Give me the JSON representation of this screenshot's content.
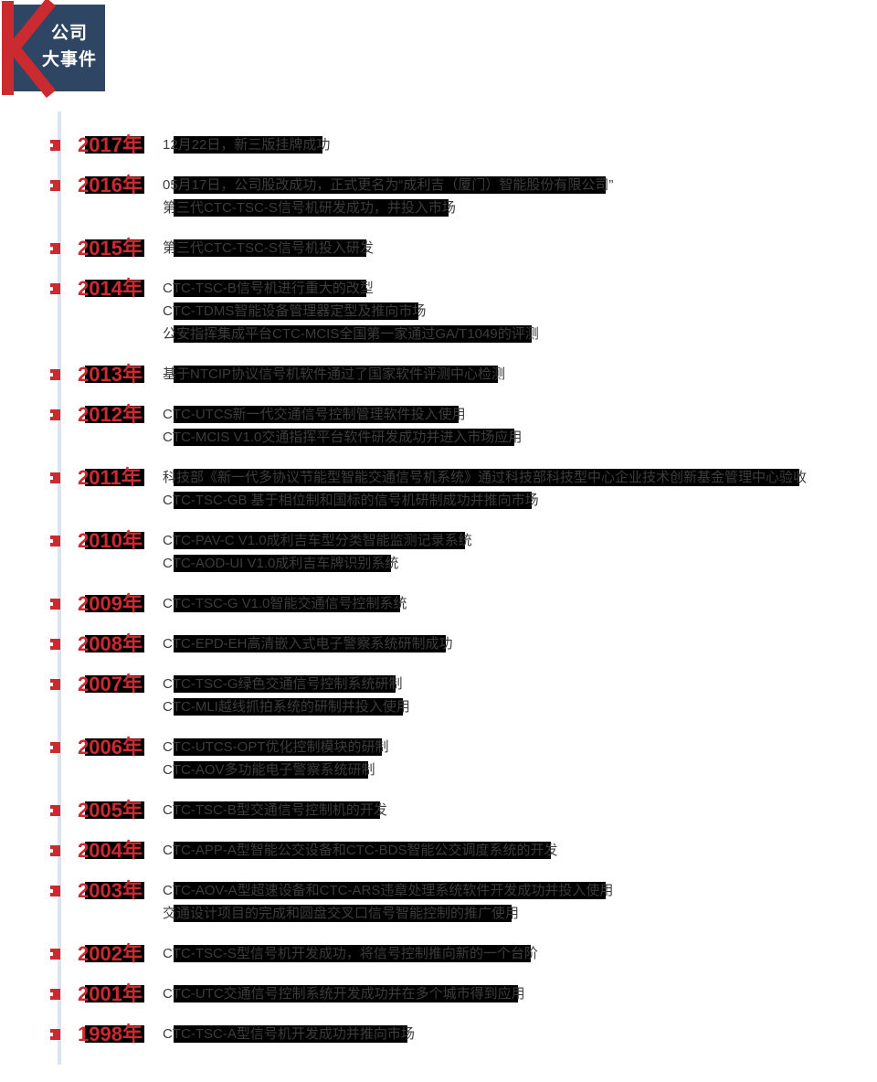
{
  "colors": {
    "accent_red": "#cb2a30",
    "navy": "#2e4563",
    "timeline_line": "#dce3f2",
    "highlight": "#000000",
    "body_text": "#3c3c3c"
  },
  "header": {
    "icon": "k-mark-icon",
    "line1": "公司",
    "line2": "大事件"
  },
  "timeline": {
    "entries": [
      {
        "year": "2017年",
        "events": [
          "12月22日，新三版挂牌成功"
        ]
      },
      {
        "year": "2016年",
        "events": [
          "05月17日，公司股改成功，正式更名为“成利吉（厦门）智能股份有限公司”",
          "第三代CTC-TSC-S信号机研发成功，并投入市场"
        ]
      },
      {
        "year": "2015年",
        "events": [
          "第三代CTC-TSC-S信号机投入研发"
        ]
      },
      {
        "year": "2014年",
        "events": [
          "CTC-TSC-B信号机进行重大的改型",
          "CTC-TDMS智能设备管理器定型及推向市场",
          "公安指挥集成平台CTC-MCIS全国第一家通过GA/T1049的评测"
        ]
      },
      {
        "year": "2013年",
        "events": [
          "基于NTCIP协议信号机软件通过了国家软件评测中心检测"
        ]
      },
      {
        "year": "2012年",
        "events": [
          "CTC-UTCS新一代交通信号控制管理软件投入使用",
          "CTC-MCIS V1.0交通指挥平台软件研发成功并进入市场应用"
        ]
      },
      {
        "year": "2011年",
        "events": [
          "科技部《新一代多协议节能型智能交通信号机系统》通过科技部科技型中心企业技术创新基金管理中心验收",
          "CTC-TSC-GB 基于相位制和国标的信号机研制成功并推向市场"
        ]
      },
      {
        "year": "2010年",
        "events": [
          "CTC-PAV-C V1.0成利吉车型分类智能监测记录系统",
          "CTC-AOD-UI V1.0成利吉车牌识别系统"
        ]
      },
      {
        "year": "2009年",
        "events": [
          "CTC-TSC-G V1.0智能交通信号控制系统"
        ]
      },
      {
        "year": "2008年",
        "events": [
          "CTC-EPD-EH高清嵌入式电子警察系统研制成功"
        ]
      },
      {
        "year": "2007年",
        "events": [
          "CTC-TSC-G绿色交通信号控制系统研制",
          "CTC-MLI越线抓拍系统的研制并投入使用"
        ]
      },
      {
        "year": "2006年",
        "events": [
          "CTC-UTCS-OPT优化控制模块的研制",
          "CTC-AOV多功能电子警察系统研制"
        ]
      },
      {
        "year": "2005年",
        "events": [
          "CTC-TSC-B型交通信号控制机的开发"
        ]
      },
      {
        "year": "2004年",
        "events": [
          "CTC-APP-A型智能公交设备和CTC-BDS智能公交调度系统的开发"
        ]
      },
      {
        "year": "2003年",
        "events": [
          "CTC-AOV-A型超速设备和CTC-ARS违章处理系统软件开发成功并投入使用",
          "交通设计项目的完成和圆盘交叉口信号智能控制的推广使用"
        ]
      },
      {
        "year": "2002年",
        "events": [
          "CTC-TSC-S型信号机开发成功，将信号控制推向新的一个台阶"
        ]
      },
      {
        "year": "2001年",
        "events": [
          "CTC-UTC交通信号控制系统开发成功并在多个城市得到应用"
        ]
      },
      {
        "year": "1998年",
        "events": [
          "CTC-TSC-A型信号机开发成功并推向市场"
        ]
      }
    ]
  }
}
